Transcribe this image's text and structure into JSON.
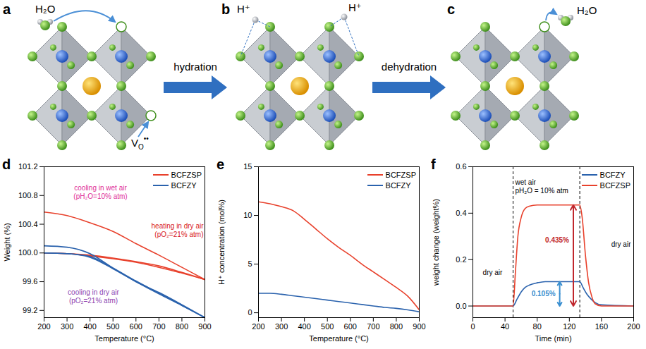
{
  "diagram": {
    "panels": [
      {
        "letter": "a",
        "water": "H₂O",
        "vacancy": {
          "base": "V",
          "sub": "O",
          "sup": "••"
        }
      },
      {
        "letter": "b",
        "protons": [
          "H⁺",
          "H⁺"
        ]
      },
      {
        "letter": "c",
        "water": "H₂O"
      }
    ],
    "arrows": [
      "hydration",
      "dehydration"
    ]
  },
  "chart_data": [
    {
      "panel": "d",
      "type": "line",
      "x_label": "Temperature (°C)",
      "y_label": "Weight (%)",
      "xlim": [
        200,
        900
      ],
      "xticks": [
        200,
        300,
        400,
        500,
        600,
        700,
        800,
        900
      ],
      "ylim": [
        99.1,
        101.2
      ],
      "yticks": [
        99.2,
        99.6,
        {
          "value": 100,
          "label": "100.0"
        },
        100.4,
        100.8,
        101.2
      ],
      "legend": "top-right",
      "x": [
        200,
        300,
        400,
        500,
        600,
        700,
        800,
        900
      ],
      "series": [
        {
          "name": "BCFZSP",
          "color": "#e8412c",
          "values": [
            100.57,
            100.52,
            100.42,
            100.3,
            100.13,
            99.97,
            99.8,
            99.63
          ]
        },
        {
          "name": "BCFZSP",
          "color": "#e8412c",
          "values": [
            100.0,
            99.99,
            99.96,
            99.92,
            99.87,
            99.8,
            99.72,
            99.63
          ]
        },
        {
          "name": "BCFZSP",
          "color": "#e8412c",
          "values": [
            100.0,
            99.99,
            99.97,
            99.93,
            99.88,
            99.82,
            99.73,
            99.63
          ]
        },
        {
          "name": "BCFZY",
          "color": "#2a62ad",
          "values": [
            100.1,
            100.08,
            99.99,
            99.79,
            99.6,
            99.45,
            99.28,
            99.1
          ]
        },
        {
          "name": "BCFZY",
          "color": "#2a62ad",
          "values": [
            100.0,
            99.99,
            99.94,
            99.78,
            99.6,
            99.43,
            99.27,
            99.1
          ]
        },
        {
          "name": "BCFZY",
          "color": "#2a62ad",
          "values": [
            100.0,
            99.99,
            99.95,
            99.79,
            99.61,
            99.44,
            99.27,
            99.1
          ]
        }
      ],
      "annotations": [
        {
          "lines": [
            "cooling in wet air",
            "(pH₂O=10% atm)"
          ],
          "color": "#e0309a"
        },
        {
          "lines": [
            "heating in dry air",
            "(pO₂=21% atm)"
          ],
          "color": "#d7191c"
        },
        {
          "lines": [
            "cooling in dry air",
            "(pO₂=21% atm)"
          ],
          "color": "#8c3fb0"
        }
      ]
    },
    {
      "panel": "e",
      "type": "line",
      "x_label": "Temperature (°C)",
      "y_label": "H⁺ concentration (mol%)",
      "xlim": [
        200,
        900
      ],
      "xticks": [
        200,
        300,
        400,
        500,
        600,
        700,
        800,
        900
      ],
      "ylim": [
        -0.5,
        15
      ],
      "yticks": [
        0,
        5,
        10,
        15
      ],
      "legend": "top-right",
      "x": [
        200,
        250,
        300,
        350,
        400,
        450,
        500,
        550,
        600,
        650,
        700,
        750,
        800,
        850,
        900
      ],
      "series": [
        {
          "name": "BCFZSP",
          "color": "#e8412c",
          "values": [
            11.4,
            11.2,
            10.9,
            10.5,
            9.6,
            8.6,
            7.6,
            6.7,
            5.9,
            5.0,
            4.2,
            3.4,
            2.6,
            1.7,
            0.3
          ]
        },
        {
          "name": "BCFZY",
          "color": "#2a62ad",
          "values": [
            2.0,
            2.0,
            1.9,
            1.75,
            1.6,
            1.45,
            1.3,
            1.15,
            1.0,
            0.85,
            0.7,
            0.55,
            0.45,
            0.3,
            0.1
          ]
        }
      ]
    },
    {
      "panel": "f",
      "type": "line",
      "x_label": "Time (min)",
      "y_label": "weight change (weight%)",
      "xlim": [
        0,
        200
      ],
      "xticks": [
        0,
        40,
        80,
        120,
        160,
        200
      ],
      "ylim": [
        -0.05,
        0.6
      ],
      "yticks": [
        {
          "value": 0,
          "label": "0.0"
        },
        0.2,
        0.4,
        0.6
      ],
      "legend": "top-right",
      "series": [
        {
          "name": "BCFZY",
          "color": "#2a62ad",
          "x": [
            0,
            50,
            55,
            60,
            65,
            70,
            80,
            90,
            100,
            133,
            137,
            142,
            147,
            152,
            160,
            200
          ],
          "values": [
            0,
            0,
            0.03,
            0.06,
            0.08,
            0.09,
            0.1,
            0.105,
            0.105,
            0.105,
            0.08,
            0.05,
            0.03,
            0.015,
            0.005,
            0
          ]
        },
        {
          "name": "BCFZSP",
          "color": "#e8412c",
          "x": [
            0,
            50,
            53,
            56,
            60,
            65,
            70,
            80,
            133,
            136,
            140,
            144,
            148,
            152,
            160,
            200
          ],
          "values": [
            0,
            0,
            0.15,
            0.3,
            0.38,
            0.42,
            0.43,
            0.435,
            0.435,
            0.38,
            0.22,
            0.1,
            0.04,
            0.01,
            0,
            0
          ]
        }
      ],
      "vlines": [
        50,
        133
      ],
      "annotations": [
        {
          "lines": [
            "dry air"
          ],
          "color": "#000000"
        },
        {
          "lines": [
            "wet air",
            "pH₂O = 10% atm"
          ],
          "color": "#000000"
        },
        {
          "lines": [
            "dry air"
          ],
          "color": "#000000"
        }
      ],
      "measures": [
        {
          "label": "0.435%",
          "from": 0,
          "to": 0.435,
          "color": "#c0272d"
        },
        {
          "label": "0.105%",
          "from": 0,
          "to": 0.105,
          "color": "#3a8fd0"
        }
      ]
    }
  ]
}
